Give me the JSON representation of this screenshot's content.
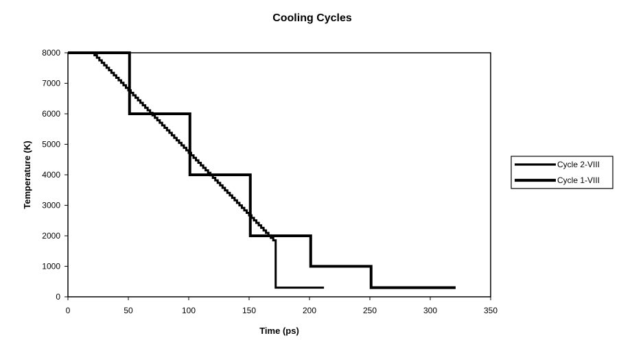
{
  "chart_data": {
    "type": "line",
    "title": "Cooling Cycles",
    "xlabel": "Time (ps)",
    "ylabel": "Temperature (K)",
    "xlim": [
      0,
      350
    ],
    "ylim": [
      0,
      8000
    ],
    "x_ticks": [
      0,
      50,
      100,
      150,
      200,
      250,
      300,
      350
    ],
    "y_ticks": [
      0,
      1000,
      2000,
      3000,
      4000,
      5000,
      6000,
      7000,
      8000
    ],
    "grid": false,
    "legend_position": "right",
    "series": [
      {
        "name": "Cycle 2-VIII",
        "color": "#000000",
        "style": "staircase",
        "x": [
          0,
          20,
          22,
          24,
          26,
          28,
          30,
          32,
          34,
          36,
          38,
          40,
          42,
          44,
          46,
          48,
          50,
          52,
          54,
          56,
          58,
          60,
          62,
          64,
          66,
          68,
          70,
          72,
          74,
          76,
          78,
          80,
          82,
          84,
          86,
          88,
          90,
          92,
          94,
          96,
          98,
          100,
          102,
          104,
          106,
          108,
          110,
          112,
          114,
          116,
          118,
          120,
          122,
          124,
          126,
          128,
          130,
          132,
          134,
          136,
          138,
          140,
          142,
          144,
          146,
          148,
          150,
          152,
          154,
          156,
          158,
          160,
          162,
          164,
          166,
          168,
          170,
          172,
          212
        ],
        "y": [
          8000,
          8000,
          7918,
          7836,
          7754,
          7672,
          7590,
          7508,
          7426,
          7344,
          7262,
          7180,
          7098,
          7016,
          6934,
          6852,
          6770,
          6688,
          6606,
          6524,
          6442,
          6360,
          6278,
          6196,
          6114,
          6032,
          5950,
          5868,
          5786,
          5704,
          5622,
          5540,
          5458,
          5376,
          5294,
          5212,
          5130,
          5048,
          4966,
          4884,
          4802,
          4720,
          4638,
          4556,
          4474,
          4392,
          4310,
          4228,
          4146,
          4064,
          3982,
          3900,
          3818,
          3736,
          3654,
          3572,
          3490,
          3408,
          3326,
          3244,
          3162,
          3080,
          2998,
          2916,
          2834,
          2752,
          2670,
          2588,
          2506,
          2424,
          2342,
          2260,
          2178,
          2096,
          2014,
          1932,
          1850,
          300,
          300
        ]
      },
      {
        "name": "Cycle 1-VIII",
        "color": "#000000",
        "style": "step",
        "x": [
          0,
          51,
          51,
          101,
          101,
          151,
          151,
          201,
          201,
          251,
          251,
          321
        ],
        "y": [
          8000,
          8000,
          6000,
          6000,
          4000,
          4000,
          2000,
          2000,
          1000,
          1000,
          300,
          300
        ]
      }
    ]
  }
}
